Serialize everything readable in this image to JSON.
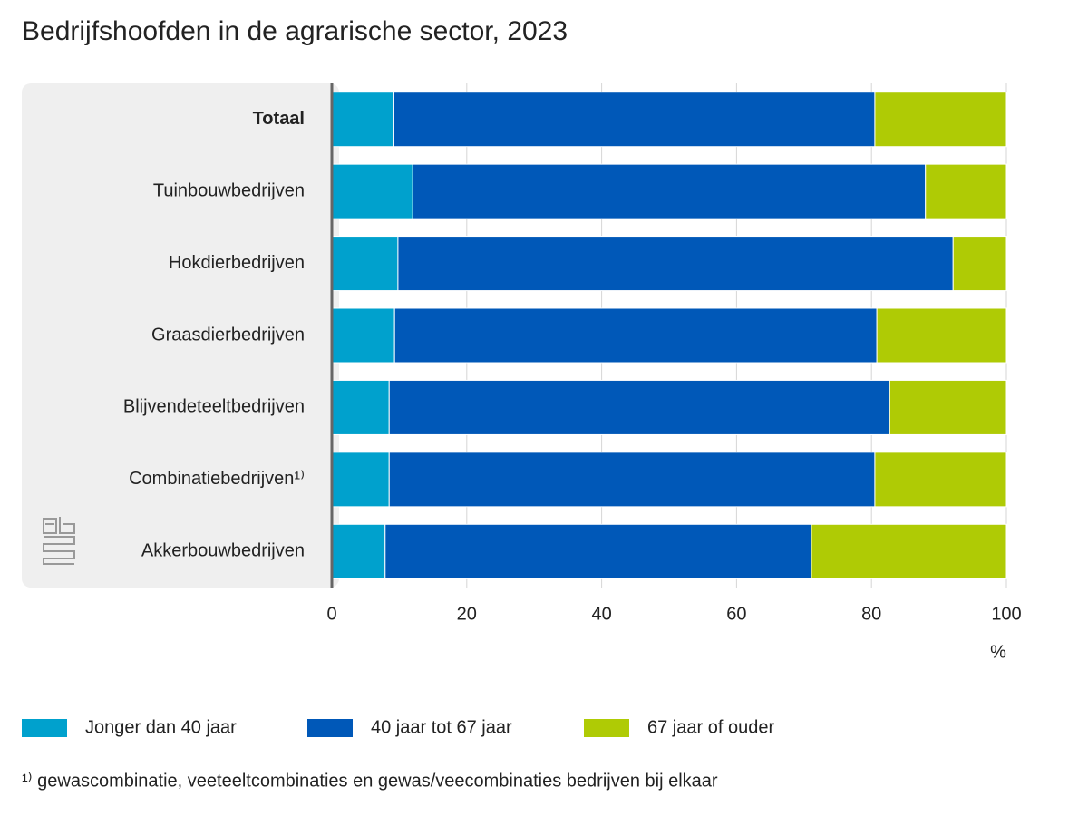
{
  "chart_data": {
    "type": "stacked_barh",
    "title": "Bedrijfshoofden in de agrarische sector, 2023",
    "categories": [
      "Totaal",
      "Tuinbouwbedrijven",
      "Hokdierbedrijven",
      "Graasdierbedrijven",
      "Blijvendeteeltbedrijven",
      "Combinatiebedrijven¹⁾",
      "Akkerbouwbedrijven"
    ],
    "series": [
      {
        "name": "Jonger dan 40 jaar",
        "color": "#00a1cd",
        "values": [
          9.2,
          12.0,
          9.8,
          9.3,
          8.5,
          8.5,
          7.9
        ]
      },
      {
        "name": "40 jaar tot 67 jaar",
        "color": "#0058b8",
        "values": [
          71.3,
          76.0,
          82.3,
          71.5,
          74.2,
          72.0,
          63.2
        ]
      },
      {
        "name": "67 jaar of ouder",
        "color": "#afcb05",
        "values": [
          19.5,
          12.0,
          7.9,
          19.2,
          17.3,
          19.5,
          28.9
        ]
      }
    ],
    "xlim": [
      0,
      100
    ],
    "xticks": [
      0,
      20,
      40,
      60,
      80,
      100
    ],
    "xlabel": "%",
    "grid": true,
    "footnote": "¹⁾ gewascombinatie, veeteeltcombinaties en gewas/veecombinaties bedrijven bij elkaar"
  }
}
